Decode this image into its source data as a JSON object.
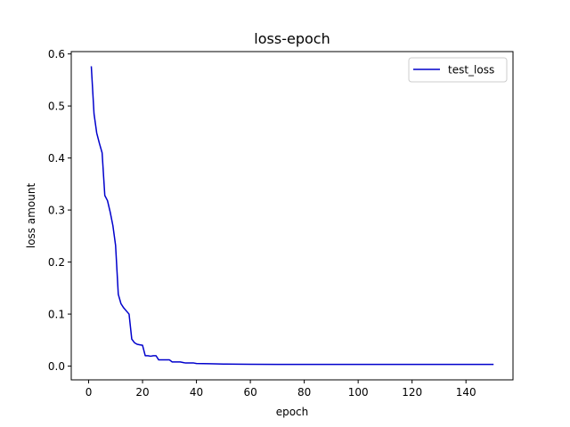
{
  "chart_data": {
    "type": "line",
    "title": "loss-epoch",
    "xlabel": "epoch",
    "ylabel": "loss amount",
    "xlim": [
      -6.45,
      157.45
    ],
    "ylim": [
      -0.0264,
      0.6045
    ],
    "xticks": [
      {
        "value": 0,
        "label": "0"
      },
      {
        "value": 20,
        "label": "20"
      },
      {
        "value": 40,
        "label": "40"
      },
      {
        "value": 60,
        "label": "60"
      },
      {
        "value": 80,
        "label": "80"
      },
      {
        "value": 100,
        "label": "100"
      },
      {
        "value": 120,
        "label": "120"
      },
      {
        "value": 140,
        "label": "140"
      }
    ],
    "yticks": [
      {
        "value": 0.0,
        "label": "0.0"
      },
      {
        "value": 0.1,
        "label": "0.1"
      },
      {
        "value": 0.2,
        "label": "0.2"
      },
      {
        "value": 0.3,
        "label": "0.3"
      },
      {
        "value": 0.4,
        "label": "0.4"
      },
      {
        "value": 0.5,
        "label": "0.5"
      },
      {
        "value": 0.6,
        "label": "0.6"
      }
    ],
    "grid": false,
    "legend_position": "top-right",
    "series": [
      {
        "name": "test_loss",
        "color": "#0000cc",
        "x": [
          1,
          2,
          3,
          4,
          5,
          6,
          7,
          8,
          9,
          10,
          11,
          12,
          13,
          14,
          15,
          16,
          17,
          18,
          19,
          20,
          21,
          22,
          23,
          24,
          25,
          26,
          27,
          28,
          29,
          30,
          31,
          32,
          33,
          34,
          35,
          36,
          37,
          38,
          39,
          40,
          45,
          50,
          55,
          60,
          70,
          80,
          90,
          100,
          110,
          120,
          130,
          140,
          150
        ],
        "y": [
          0.575,
          0.485,
          0.448,
          0.428,
          0.41,
          0.328,
          0.318,
          0.296,
          0.27,
          0.232,
          0.138,
          0.12,
          0.112,
          0.106,
          0.1,
          0.052,
          0.045,
          0.042,
          0.041,
          0.04,
          0.02,
          0.02,
          0.019,
          0.02,
          0.02,
          0.012,
          0.012,
          0.012,
          0.012,
          0.012,
          0.008,
          0.008,
          0.008,
          0.008,
          0.007,
          0.006,
          0.006,
          0.006,
          0.006,
          0.005,
          0.0045,
          0.004,
          0.0038,
          0.0035,
          0.0034,
          0.0034,
          0.0033,
          0.0033,
          0.0033,
          0.0033,
          0.0033,
          0.0033,
          0.0033
        ]
      }
    ]
  }
}
